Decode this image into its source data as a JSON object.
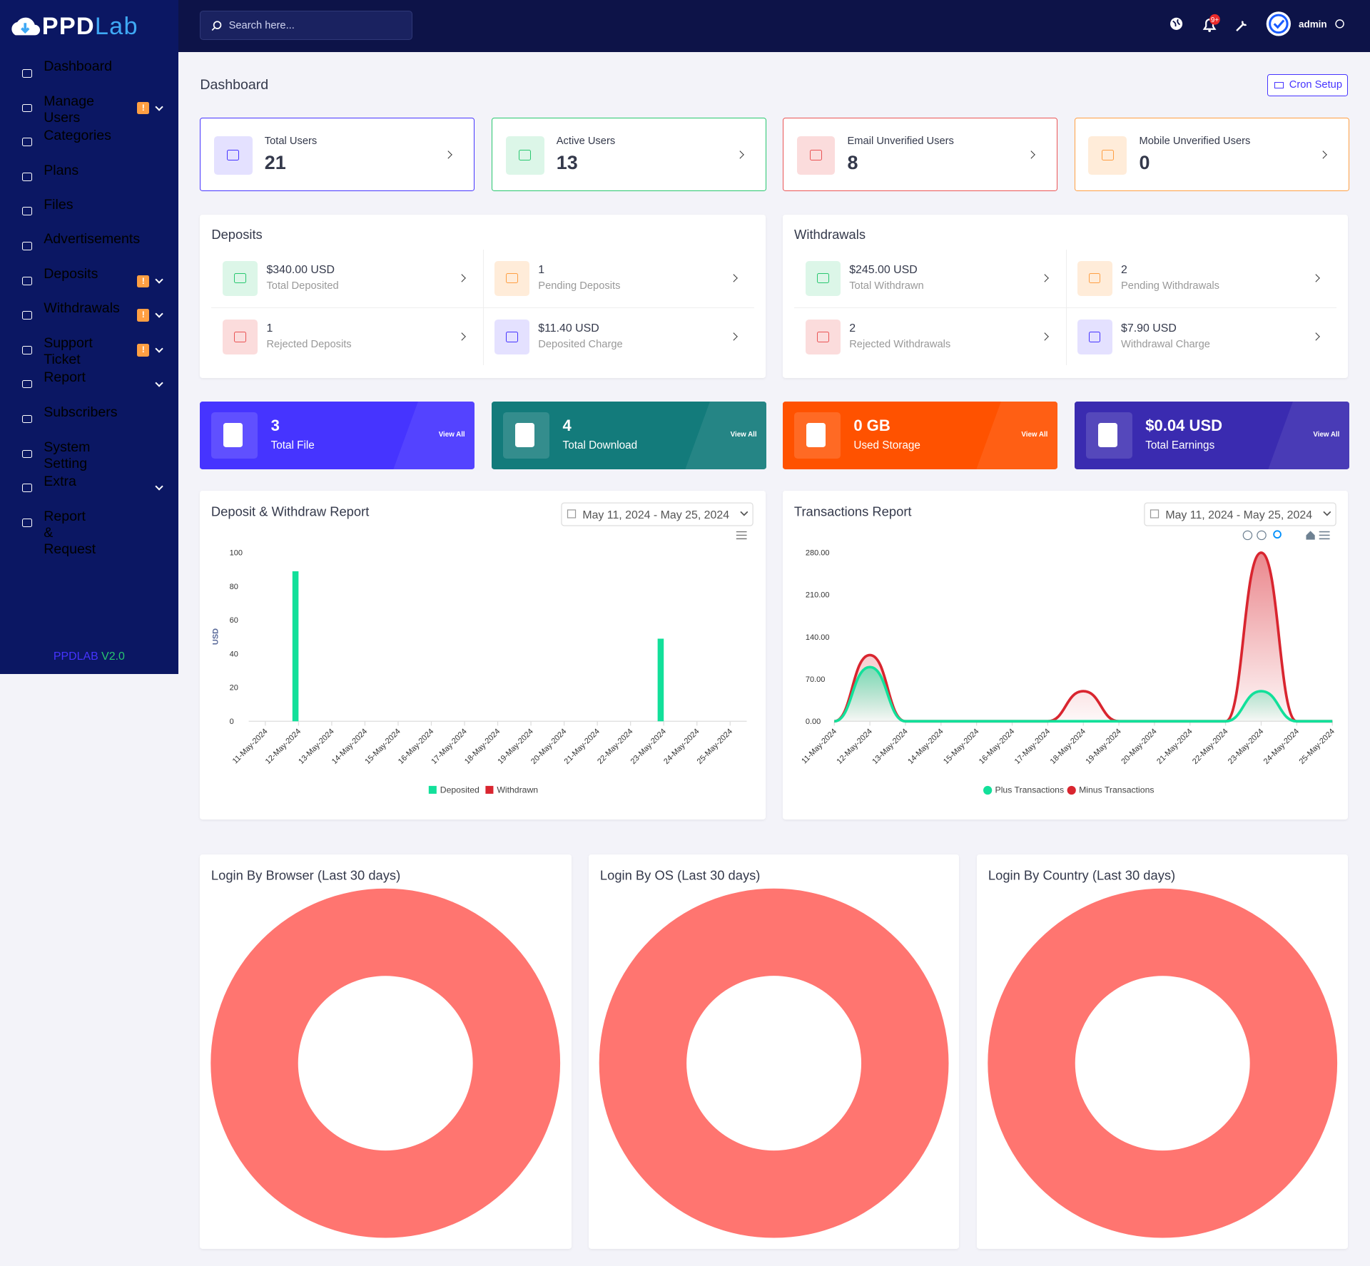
{
  "brand": {
    "part_a": "PPD",
    "part_b": "Lab"
  },
  "topbar": {
    "search_placeholder": "Search here...",
    "notification_badge": "9+",
    "user": "admin"
  },
  "sidebar": {
    "items": [
      {
        "label": "Dashboard",
        "active": true
      },
      {
        "label": "Manage Users",
        "badge": "!",
        "submenu": true
      },
      {
        "label": "Categories"
      },
      {
        "label": "Plans"
      },
      {
        "label": "Files"
      },
      {
        "label": "Advertisements"
      },
      {
        "label": "Deposits",
        "badge": "!",
        "submenu": true
      },
      {
        "label": "Withdrawals",
        "badge": "!",
        "submenu": true
      },
      {
        "label": "Support Ticket",
        "badge": "!",
        "submenu": true
      },
      {
        "label": "Report",
        "submenu": true
      },
      {
        "label": "Subscribers"
      },
      {
        "label": "System Setting"
      },
      {
        "label": "Extra",
        "submenu": true
      },
      {
        "label": "Report & Request"
      }
    ],
    "footer_a": "PPDLAB",
    "footer_b": "V2.0"
  },
  "page_title": "Dashboard",
  "cron_button": "Cron Setup",
  "user_stats": [
    {
      "label": "Total Users",
      "value": 21,
      "color": "#4634ff",
      "tint": "#e4e1ff"
    },
    {
      "label": "Active Users",
      "value": 13,
      "color": "#28c76f",
      "tint": "#dcf6e8"
    },
    {
      "label": "Email Unverified Users",
      "value": 8,
      "color": "#ea5455",
      "tint": "#fbdcdc"
    },
    {
      "label": "Mobile Unverified Users",
      "value": 0,
      "color": "#ff9f43",
      "tint": "#ffecd9"
    }
  ],
  "deposits": {
    "title": "Deposits",
    "items": [
      {
        "value": "$340.00 USD",
        "label": "Total Deposited",
        "color": "#28c76f",
        "tint": "#dcf6e8"
      },
      {
        "value": "1",
        "label": "Pending Deposits",
        "color": "#ff9f43",
        "tint": "#ffecd9"
      },
      {
        "value": "1",
        "label": "Rejected Deposits",
        "color": "#ea5455",
        "tint": "#fbdcdc"
      },
      {
        "value": "$11.40 USD",
        "label": "Deposited Charge",
        "color": "#4634ff",
        "tint": "#e4e1ff"
      }
    ]
  },
  "withdrawals": {
    "title": "Withdrawals",
    "items": [
      {
        "value": "$245.00 USD",
        "label": "Total Withdrawn",
        "color": "#28c76f",
        "tint": "#dcf6e8"
      },
      {
        "value": "2",
        "label": "Pending Withdrawals",
        "color": "#ff9f43",
        "tint": "#ffecd9"
      },
      {
        "value": "2",
        "label": "Rejected Withdrawals",
        "color": "#ea5455",
        "tint": "#fbdcdc"
      },
      {
        "value": "$7.90 USD",
        "label": "Withdrawal Charge",
        "color": "#4634ff",
        "tint": "#e4e1ff"
      }
    ]
  },
  "tiles": [
    {
      "value": "3",
      "label": "Total File",
      "link": "View All",
      "color": "#4634ff"
    },
    {
      "value": "4",
      "label": "Total Download",
      "link": "View All",
      "color": "#137b7b"
    },
    {
      "value": "0 GB",
      "label": "Used Storage",
      "link": "View All",
      "color": "#ff5200"
    },
    {
      "value": "$0.04 USD",
      "label": "Total Earnings",
      "link": "View All",
      "color": "#3a2bb0"
    }
  ],
  "chart_data": [
    {
      "type": "bar",
      "title": "Deposit & Withdraw Report",
      "date_range": "May 11, 2024 - May 25, 2024",
      "y_label": "USD",
      "categories": [
        "11-May-2024",
        "12-May-2024",
        "13-May-2024",
        "14-May-2024",
        "15-May-2024",
        "16-May-2024",
        "17-May-2024",
        "18-May-2024",
        "19-May-2024",
        "20-May-2024",
        "21-May-2024",
        "22-May-2024",
        "23-May-2024",
        "24-May-2024",
        "25-May-2024"
      ],
      "series": [
        {
          "name": "Deposited",
          "color": "#12e09a",
          "values": [
            0,
            89,
            0,
            0,
            0,
            0,
            0,
            0,
            0,
            0,
            0,
            0,
            49,
            0,
            0
          ]
        },
        {
          "name": "Withdrawn",
          "color": "#d9252f",
          "values": [
            0,
            0,
            0,
            0,
            0,
            0,
            0,
            0,
            0,
            0,
            0,
            0,
            0,
            0,
            0
          ]
        }
      ],
      "ylim": [
        0,
        100
      ],
      "yticks": [
        0,
        20,
        40,
        60,
        80,
        100
      ],
      "grid": false
    },
    {
      "type": "area",
      "title": "Transactions Report",
      "date_range": "May 11, 2024 - May 25, 2024",
      "categories": [
        "11-May-2024",
        "12-May-2024",
        "13-May-2024",
        "14-May-2024",
        "15-May-2024",
        "16-May-2024",
        "17-May-2024",
        "18-May-2024",
        "19-May-2024",
        "20-May-2024",
        "21-May-2024",
        "22-May-2024",
        "23-May-2024",
        "24-May-2024",
        "25-May-2024"
      ],
      "series": [
        {
          "name": "Plus Transactions",
          "color": "#12e09a",
          "values": [
            0,
            90,
            0,
            0,
            0,
            0,
            0,
            0,
            0,
            0,
            0,
            0,
            50,
            0,
            0
          ]
        },
        {
          "name": "Minus Transactions",
          "color": "#d9252f",
          "values": [
            0,
            110,
            0,
            0,
            0,
            0,
            0,
            50,
            0,
            0,
            0,
            0,
            280,
            0,
            0
          ]
        }
      ],
      "ylim": [
        0,
        280
      ],
      "yticks": [
        {
          "value": 0,
          "label": "0.00"
        },
        {
          "value": 70,
          "label": "70.00"
        },
        {
          "value": 140,
          "label": "140.00"
        },
        {
          "value": 210,
          "label": "210.00"
        },
        {
          "value": 280,
          "label": "280.00"
        }
      ],
      "grid": false
    },
    {
      "type": "pie",
      "title": "Login By Browser (Last 30 days)",
      "categories": [
        null
      ],
      "values": [
        100
      ],
      "colors": [
        "#ff7570"
      ],
      "donut": true
    },
    {
      "type": "pie",
      "title": "Login By OS (Last 30 days)",
      "categories": [
        null
      ],
      "values": [
        100
      ],
      "colors": [
        "#ff7570"
      ],
      "donut": true
    },
    {
      "type": "pie",
      "title": "Login By Country (Last 30 days)",
      "categories": [
        null
      ],
      "values": [
        100
      ],
      "colors": [
        "#ff7570"
      ],
      "donut": true
    }
  ]
}
